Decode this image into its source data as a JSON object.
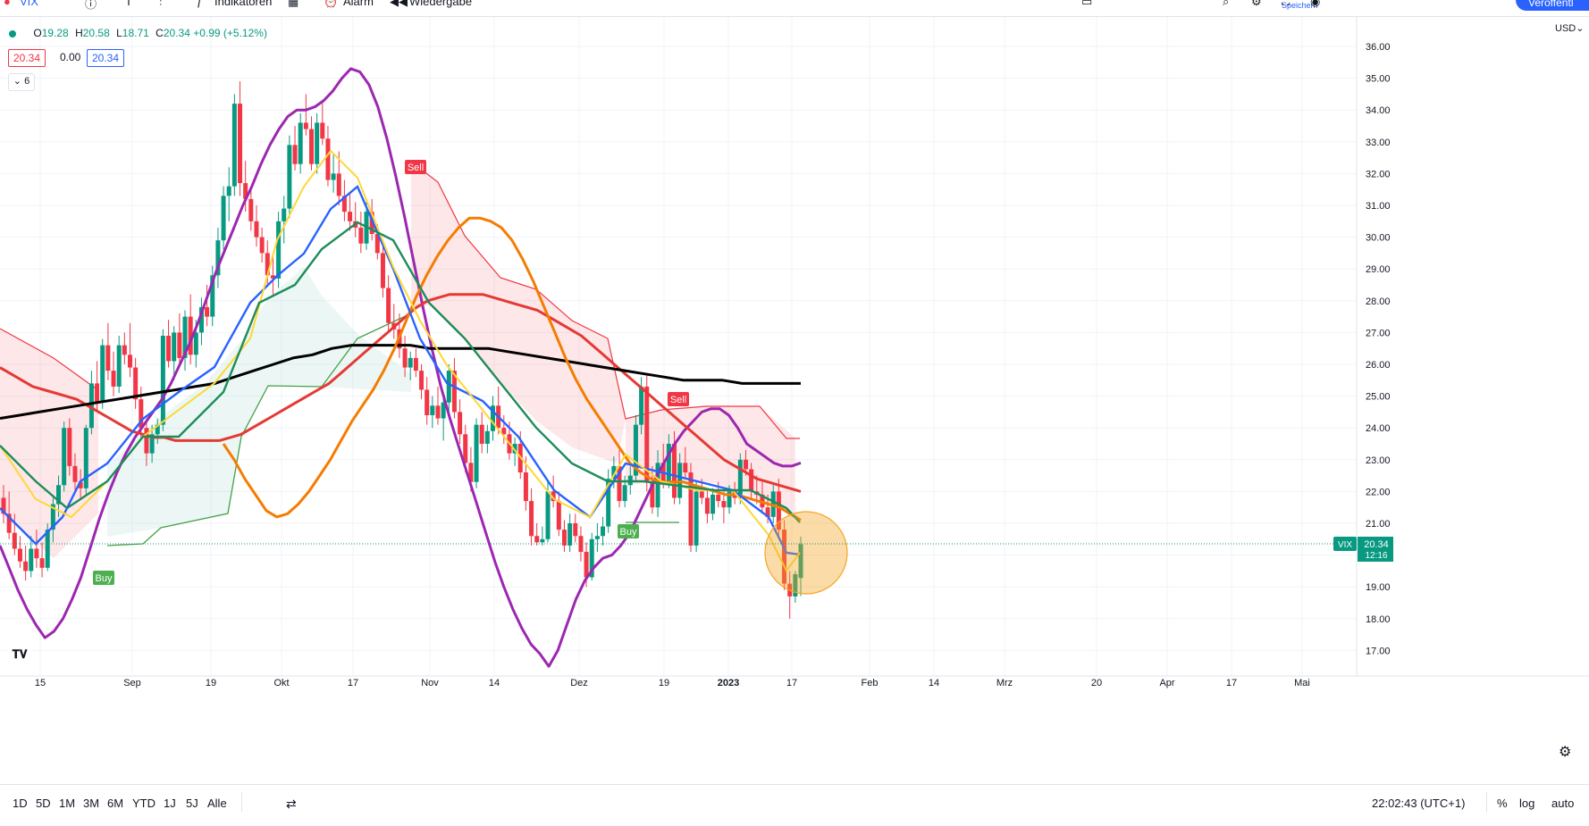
{
  "toolbar": {
    "symbol": "VIX",
    "interval": "T",
    "indicators": "Indikatoren",
    "alert": "Alarm",
    "replay": "Wiedergabe",
    "save": "Speichern",
    "publish": "Veröffentl"
  },
  "legend": {
    "open_label": "O",
    "open": "19.28",
    "high_label": "H",
    "high": "20.58",
    "low_label": "L",
    "low": "18.71",
    "close_label": "C",
    "close": "20.34",
    "change": "+0.99 (+5.12%)",
    "bid": "20.34",
    "spread": "0.00",
    "ask": "20.34",
    "indicator_count": "6"
  },
  "price_axis": {
    "currency": "USD",
    "ticks": [
      "36.00",
      "35.00",
      "34.00",
      "33.00",
      "32.00",
      "31.00",
      "30.00",
      "29.00",
      "28.00",
      "27.00",
      "26.00",
      "25.00",
      "24.00",
      "23.00",
      "22.00",
      "21.00",
      "20.00",
      "19.00",
      "18.00",
      "17.00"
    ],
    "last_price_label": "20.34",
    "countdown": "12:16",
    "symbol_tag": "VIX"
  },
  "time_axis": {
    "labels": [
      "15",
      "Sep",
      "19",
      "Okt",
      "17",
      "Nov",
      "14",
      "Dez",
      "19",
      "2023",
      "17",
      "Feb",
      "14",
      "Mrz",
      "20",
      "Apr",
      "17",
      "Mai"
    ]
  },
  "bottombar": {
    "ranges": [
      "1D",
      "5D",
      "1M",
      "3M",
      "6M",
      "YTD",
      "1J",
      "5J",
      "Alle"
    ],
    "clock": "22:02:43 (UTC+1)",
    "percent": "%",
    "log": "log",
    "auto": "auto"
  },
  "chart_data": {
    "type": "line",
    "ylim": [
      16.5,
      36.5
    ],
    "candles_ohlc": [
      [
        21.8,
        22.2,
        21.0,
        21.3
      ],
      [
        21.3,
        22.0,
        20.5,
        20.7
      ],
      [
        20.7,
        21.3,
        20.0,
        20.2
      ],
      [
        20.2,
        20.6,
        19.6,
        19.8
      ],
      [
        19.8,
        20.3,
        19.2,
        19.5
      ],
      [
        19.5,
        20.6,
        19.3,
        20.2
      ],
      [
        20.2,
        20.8,
        19.6,
        19.9
      ],
      [
        19.9,
        20.4,
        19.3,
        19.6
      ],
      [
        19.6,
        21.0,
        19.5,
        20.8
      ],
      [
        20.8,
        21.8,
        20.4,
        21.6
      ],
      [
        21.6,
        22.5,
        21.2,
        22.2
      ],
      [
        22.2,
        24.2,
        22.0,
        24.0
      ],
      [
        24.0,
        24.3,
        22.5,
        22.8
      ],
      [
        22.8,
        23.2,
        22.0,
        22.3
      ],
      [
        22.3,
        22.7,
        21.8,
        22.1
      ],
      [
        22.1,
        24.1,
        21.9,
        24.0
      ],
      [
        24.0,
        25.8,
        23.8,
        25.4
      ],
      [
        25.4,
        26.1,
        24.5,
        24.8
      ],
      [
        24.8,
        26.8,
        24.6,
        26.6
      ],
      [
        26.6,
        27.3,
        25.5,
        25.8
      ],
      [
        25.8,
        26.4,
        25.0,
        25.3
      ],
      [
        25.3,
        26.9,
        25.1,
        26.6
      ],
      [
        26.6,
        27.0,
        26.0,
        26.3
      ],
      [
        26.3,
        27.3,
        25.6,
        25.9
      ],
      [
        25.9,
        26.2,
        24.6,
        24.9
      ],
      [
        24.9,
        25.3,
        23.7,
        24.0
      ],
      [
        24.0,
        24.3,
        22.8,
        23.2
      ],
      [
        23.2,
        24.1,
        22.9,
        23.8
      ],
      [
        23.8,
        24.3,
        23.5,
        24.1
      ],
      [
        24.1,
        27.1,
        23.9,
        26.9
      ],
      [
        26.9,
        27.4,
        25.9,
        26.1
      ],
      [
        26.1,
        27.2,
        25.5,
        27.0
      ],
      [
        27.0,
        27.6,
        26.0,
        26.2
      ],
      [
        26.2,
        27.7,
        25.8,
        27.5
      ],
      [
        27.5,
        28.2,
        26.0,
        26.3
      ],
      [
        26.3,
        27.4,
        25.9,
        27.0
      ],
      [
        27.0,
        28.1,
        26.6,
        27.8
      ],
      [
        27.8,
        28.5,
        27.2,
        27.5
      ],
      [
        27.5,
        29.1,
        27.2,
        28.8
      ],
      [
        28.8,
        30.3,
        28.4,
        29.9
      ],
      [
        29.9,
        31.6,
        29.6,
        31.3
      ],
      [
        31.3,
        32.2,
        30.5,
        31.6
      ],
      [
        31.6,
        34.5,
        31.3,
        34.2
      ],
      [
        34.2,
        34.9,
        31.3,
        31.7
      ],
      [
        31.7,
        32.4,
        30.8,
        31.2
      ],
      [
        31.2,
        31.5,
        30.2,
        30.5
      ],
      [
        30.5,
        31.0,
        29.7,
        30.0
      ],
      [
        30.0,
        30.3,
        29.2,
        29.5
      ],
      [
        29.5,
        29.9,
        28.5,
        28.8
      ],
      [
        28.8,
        29.4,
        28.2,
        28.7
      ],
      [
        28.7,
        30.8,
        28.4,
        30.5
      ],
      [
        30.5,
        31.3,
        29.8,
        30.9
      ],
      [
        30.9,
        33.2,
        30.6,
        32.9
      ],
      [
        32.9,
        33.5,
        32.1,
        32.3
      ],
      [
        32.3,
        33.9,
        32.0,
        33.6
      ],
      [
        33.6,
        34.5,
        33.2,
        33.4
      ],
      [
        33.4,
        33.8,
        32.1,
        32.3
      ],
      [
        32.3,
        33.9,
        32.0,
        33.6
      ],
      [
        33.6,
        34.3,
        32.9,
        33.1
      ],
      [
        33.1,
        33.5,
        31.6,
        31.8
      ],
      [
        31.8,
        32.6,
        31.4,
        32.0
      ],
      [
        32.0,
        32.7,
        31.0,
        31.3
      ],
      [
        31.3,
        31.8,
        30.5,
        30.8
      ],
      [
        30.8,
        31.4,
        30.2,
        30.5
      ],
      [
        30.5,
        31.1,
        30.0,
        30.3
      ],
      [
        30.3,
        30.8,
        29.5,
        29.8
      ],
      [
        29.8,
        31.1,
        29.6,
        30.8
      ],
      [
        30.8,
        31.2,
        29.9,
        30.1
      ],
      [
        30.1,
        30.4,
        29.3,
        29.5
      ],
      [
        29.5,
        29.8,
        28.1,
        28.4
      ],
      [
        28.4,
        28.8,
        27.0,
        27.3
      ],
      [
        27.3,
        27.9,
        26.8,
        27.1
      ],
      [
        27.1,
        27.6,
        26.2,
        26.5
      ],
      [
        26.5,
        26.9,
        25.6,
        25.9
      ],
      [
        25.9,
        26.4,
        25.5,
        26.2
      ],
      [
        26.2,
        26.5,
        25.6,
        25.8
      ],
      [
        25.8,
        26.0,
        24.9,
        25.2
      ],
      [
        25.2,
        25.6,
        24.1,
        24.4
      ],
      [
        24.4,
        25.0,
        24.0,
        24.7
      ],
      [
        24.7,
        25.3,
        24.1,
        24.3
      ],
      [
        24.3,
        25.0,
        23.6,
        24.8
      ],
      [
        24.8,
        26.0,
        24.5,
        25.8
      ],
      [
        25.8,
        26.2,
        24.3,
        24.5
      ],
      [
        24.5,
        24.9,
        23.5,
        23.8
      ],
      [
        23.8,
        24.1,
        22.6,
        22.9
      ],
      [
        22.9,
        23.4,
        22.0,
        22.3
      ],
      [
        22.3,
        24.3,
        22.1,
        24.1
      ],
      [
        24.1,
        24.5,
        23.2,
        23.5
      ],
      [
        23.5,
        24.1,
        23.2,
        23.9
      ],
      [
        23.9,
        25.0,
        23.6,
        24.7
      ],
      [
        24.7,
        25.3,
        23.8,
        24.0
      ],
      [
        24.0,
        24.4,
        23.5,
        23.8
      ],
      [
        23.8,
        24.2,
        23.0,
        23.2
      ],
      [
        23.2,
        23.7,
        22.8,
        23.5
      ],
      [
        23.5,
        23.9,
        22.4,
        22.6
      ],
      [
        22.6,
        23.1,
        21.4,
        21.7
      ],
      [
        21.7,
        22.1,
        20.3,
        20.6
      ],
      [
        20.6,
        21.0,
        20.3,
        20.4
      ],
      [
        20.4,
        20.9,
        20.3,
        20.5
      ],
      [
        20.5,
        22.3,
        20.4,
        22.0
      ],
      [
        22.0,
        22.5,
        21.5,
        21.7
      ],
      [
        21.7,
        22.0,
        20.6,
        20.8
      ],
      [
        20.8,
        21.1,
        20.1,
        20.3
      ],
      [
        20.3,
        21.3,
        20.1,
        21.0
      ],
      [
        21.0,
        21.3,
        20.4,
        20.6
      ],
      [
        20.6,
        20.9,
        19.8,
        20.1
      ],
      [
        20.1,
        20.4,
        19.0,
        19.3
      ],
      [
        19.3,
        20.7,
        19.2,
        20.5
      ],
      [
        20.5,
        21.0,
        20.1,
        20.6
      ],
      [
        20.6,
        21.2,
        20.3,
        20.9
      ],
      [
        20.9,
        22.7,
        20.7,
        22.4
      ],
      [
        22.4,
        23.1,
        22.1,
        22.8
      ],
      [
        22.8,
        23.3,
        21.5,
        21.7
      ],
      [
        21.7,
        22.5,
        21.5,
        22.2
      ],
      [
        22.2,
        22.8,
        21.9,
        22.5
      ],
      [
        22.5,
        24.4,
        22.3,
        24.1
      ],
      [
        24.1,
        25.6,
        23.8,
        25.3
      ],
      [
        25.3,
        25.7,
        22.0,
        22.3
      ],
      [
        22.3,
        22.8,
        21.3,
        21.5
      ],
      [
        21.5,
        23.3,
        21.2,
        22.9
      ],
      [
        22.9,
        23.5,
        22.1,
        22.3
      ],
      [
        22.3,
        23.8,
        22.1,
        23.5
      ],
      [
        23.5,
        23.9,
        21.6,
        21.8
      ],
      [
        21.8,
        23.2,
        21.6,
        22.9
      ],
      [
        22.9,
        23.4,
        22.4,
        22.6
      ],
      [
        22.6,
        22.9,
        20.1,
        20.3
      ],
      [
        20.3,
        22.3,
        20.1,
        22.0
      ],
      [
        22.0,
        22.4,
        21.6,
        21.8
      ],
      [
        21.8,
        22.1,
        21.0,
        21.3
      ],
      [
        21.3,
        22.1,
        21.1,
        21.9
      ],
      [
        21.9,
        22.3,
        21.5,
        21.7
      ],
      [
        21.7,
        22.0,
        21.0,
        21.5
      ],
      [
        21.5,
        22.2,
        21.3,
        22.0
      ],
      [
        22.0,
        22.3,
        21.6,
        21.8
      ],
      [
        21.8,
        23.2,
        21.6,
        23.0
      ],
      [
        23.0,
        23.3,
        22.5,
        22.7
      ],
      [
        22.7,
        22.9,
        21.8,
        22.0
      ],
      [
        22.0,
        22.5,
        21.6,
        21.9
      ],
      [
        21.9,
        22.3,
        21.3,
        21.5
      ],
      [
        21.5,
        21.9,
        21.0,
        21.2
      ],
      [
        21.2,
        22.2,
        21.0,
        22.0
      ],
      [
        22.0,
        22.4,
        20.6,
        20.8
      ],
      [
        20.8,
        21.1,
        18.9,
        19.1
      ],
      [
        19.1,
        19.5,
        18.0,
        18.7
      ],
      [
        18.7,
        19.5,
        18.5,
        19.4
      ],
      [
        19.28,
        20.58,
        18.71,
        20.34
      ]
    ],
    "series": [
      {
        "color": "#9c27b0",
        "values": [
          20.3,
          19.6,
          18.9,
          18.3,
          17.8,
          17.4,
          17.6,
          18.0,
          18.6,
          19.3,
          20.2,
          21.1,
          21.9,
          22.6,
          23.2,
          23.7,
          24.1,
          24.5,
          24.9,
          25.4,
          26.0,
          26.6,
          27.3,
          28.1,
          28.9,
          29.6,
          30.3,
          31.0,
          31.6,
          32.3,
          32.9,
          33.4,
          33.8,
          34.0,
          34.0,
          34.1,
          34.3,
          34.6,
          35.0,
          35.3,
          35.2,
          34.8,
          34.1,
          33.1,
          31.9,
          30.6,
          29.2,
          27.8,
          26.5,
          25.3,
          24.3,
          23.4,
          22.5,
          21.6,
          20.7,
          19.8,
          19.0,
          18.3,
          17.7,
          17.2,
          16.9,
          16.5,
          17.0,
          17.8,
          18.6,
          19.2,
          19.6,
          19.9,
          20.0,
          20.3,
          20.7,
          21.3,
          21.9,
          22.5,
          23.0,
          23.5,
          23.9,
          24.2,
          24.5,
          24.6,
          24.6,
          24.4,
          24.0,
          23.5,
          23.3,
          23.1,
          22.9,
          22.8,
          22.8,
          22.9
        ]
      },
      {
        "color": "#e53935",
        "values": [
          25.9,
          25.7,
          25.5,
          25.3,
          25.2,
          25.1,
          25.0,
          24.9,
          24.7,
          24.5,
          24.3,
          24.1,
          23.9,
          23.8,
          23.7,
          23.7,
          23.6,
          23.6,
          23.6,
          23.6,
          23.6,
          23.7,
          23.8,
          24.0,
          24.2,
          24.4,
          24.6,
          24.8,
          25.0,
          25.2,
          25.4,
          25.7,
          26.0,
          26.3,
          26.6,
          26.9,
          27.2,
          27.5,
          27.8,
          28.0,
          28.1,
          28.2,
          28.2,
          28.2,
          28.2,
          28.1,
          28.0,
          27.9,
          27.8,
          27.7,
          27.5,
          27.3,
          27.1,
          26.9,
          26.6,
          26.3,
          26.0,
          25.7,
          25.4,
          25.1,
          24.8,
          24.5,
          24.2,
          23.9,
          23.6,
          23.3,
          23.0,
          22.8,
          22.6,
          22.4,
          22.3,
          22.2,
          22.1,
          22.0
        ]
      },
      {
        "color": "#000000",
        "values": [
          24.3,
          24.4,
          24.5,
          24.6,
          24.7,
          24.8,
          24.9,
          25.0,
          25.1,
          25.2,
          25.3,
          25.4,
          25.6,
          25.8,
          26.0,
          26.2,
          26.3,
          26.5,
          26.6,
          26.6,
          26.6,
          26.6,
          26.5,
          26.5,
          26.5,
          26.5,
          26.4,
          26.3,
          26.2,
          26.1,
          26.0,
          25.9,
          25.8,
          25.7,
          25.6,
          25.5,
          25.5,
          25.5,
          25.4,
          25.4,
          25.4,
          25.4
        ]
      },
      {
        "color": "#f57c00",
        "values": [
          23.5,
          23.0,
          22.4,
          21.9,
          21.4,
          21.2,
          21.3,
          21.6,
          22.0,
          22.5,
          23.0,
          23.6,
          24.2,
          24.7,
          25.2,
          25.8,
          26.5,
          27.3,
          28.1,
          28.8,
          29.4,
          29.9,
          30.3,
          30.6,
          30.6,
          30.5,
          30.3,
          29.9,
          29.3,
          28.6,
          27.8,
          27.0,
          26.2,
          25.5,
          24.9,
          24.4,
          23.9,
          23.4,
          22.9,
          22.6,
          22.4,
          22.3,
          22.3,
          22.3,
          22.2,
          22.1,
          22.0,
          21.9,
          21.9,
          21.8,
          21.7,
          21.6,
          21.5,
          21.3,
          21.1
        ]
      }
    ],
    "markers": [
      {
        "label": "Sell",
        "type": "sell"
      },
      {
        "label": "Buy",
        "type": "buy"
      },
      {
        "label": "Buy",
        "type": "buy"
      },
      {
        "label": "Sell",
        "type": "sell"
      }
    ]
  }
}
